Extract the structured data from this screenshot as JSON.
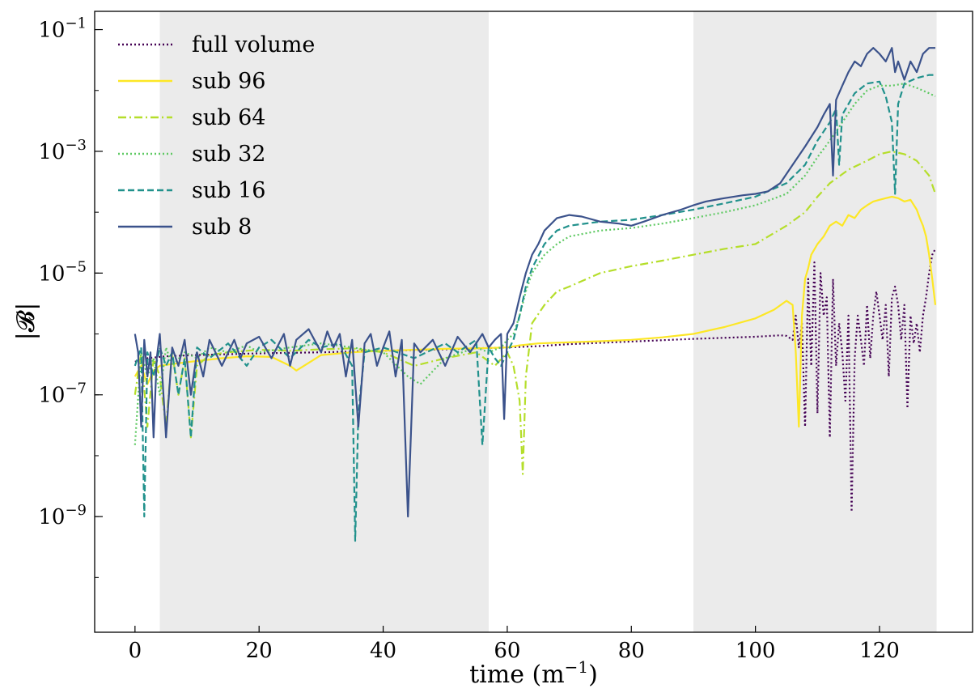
{
  "chart_data": {
    "type": "line",
    "xlabel": "time (m",
    "xlabel_sup": "−1",
    "xlabel_tail": ")",
    "ylabel": "|𝓑|",
    "xlim": [
      -6.5,
      135
    ],
    "ylim_log10": [
      -10.9,
      -0.7
    ],
    "yscale": "log",
    "x_ticks": [
      0,
      20,
      40,
      60,
      80,
      100,
      120
    ],
    "y_ticks": [
      {
        "exp": -1,
        "base": "10",
        "sup": "−1"
      },
      {
        "exp": -3,
        "base": "10",
        "sup": "−3"
      },
      {
        "exp": -5,
        "base": "10",
        "sup": "−5"
      },
      {
        "exp": -7,
        "base": "10",
        "sup": "−7"
      },
      {
        "exp": -9,
        "base": "10",
        "sup": "−9"
      }
    ],
    "shaded_regions": [
      [
        4,
        57
      ],
      [
        90,
        129.2
      ]
    ],
    "shade_color": "#ebebeb",
    "legend_position": "upper-left",
    "series": [
      {
        "name": "full volume",
        "color": "#440154",
        "dash": "dotted",
        "x": [
          0,
          2,
          5,
          10,
          20,
          30,
          40,
          50,
          55,
          60,
          65,
          70,
          80,
          90,
          100,
          104,
          105,
          106,
          106.5,
          107,
          107.5,
          108,
          108.5,
          109,
          109.5,
          110,
          110.5,
          111,
          111.5,
          112,
          112.5,
          113,
          113.5,
          114,
          114.5,
          115,
          115.5,
          116,
          116.5,
          117,
          117.5,
          118,
          118.5,
          119,
          119.5,
          120,
          120.5,
          121,
          121.5,
          122,
          122.5,
          123,
          123.5,
          124,
          124.5,
          125,
          125.5,
          126,
          126.5,
          127,
          127.5,
          128,
          128.5,
          129
        ],
        "y": [
          3.5e-07,
          4e-07,
          4.3e-07,
          4.5e-07,
          4.8e-07,
          5e-07,
          5.3e-07,
          5.6e-07,
          5.8e-07,
          6e-07,
          6.3e-07,
          6.8e-07,
          7.5e-07,
          8.3e-07,
          9e-07,
          9.5e-07,
          9.3e-07,
          8e-07,
          2e-06,
          6e-07,
          1.5e-06,
          3e-08,
          8e-06,
          3e-07,
          1.5e-05,
          5e-08,
          1e-05,
          2e-06,
          4e-06,
          2e-08,
          8e-06,
          3e-07,
          1.5e-06,
          5e-07,
          8e-08,
          2e-06,
          1.2e-09,
          4e-07,
          2e-06,
          8e-07,
          3e-07,
          3e-06,
          4e-07,
          2e-06,
          5e-06,
          2e-06,
          8e-07,
          3e-06,
          2e-07,
          4e-06,
          6e-06,
          3e-06,
          8e-07,
          3e-06,
          6e-08,
          2e-06,
          7e-07,
          1.5e-06,
          5e-07,
          2e-06,
          4e-06,
          1e-05,
          2e-05,
          2.5e-05
        ]
      },
      {
        "name": "sub 96",
        "color": "#fde725",
        "dash": "solid",
        "x": [
          0,
          1,
          2,
          3,
          4,
          6,
          8,
          10,
          14,
          18,
          22,
          25,
          26,
          30,
          35,
          40,
          45,
          50,
          55,
          60,
          62,
          65,
          70,
          75,
          80,
          85,
          90,
          95,
          100,
          103,
          105,
          106,
          106.5,
          107,
          107.5,
          108,
          108.5,
          109,
          110,
          111,
          112,
          113,
          114,
          115,
          116,
          117,
          118,
          119,
          120,
          121,
          122,
          123,
          124,
          125,
          126,
          126.5,
          127,
          127.5,
          128,
          128.5,
          129
        ],
        "y": [
          2e-07,
          3e-07,
          1.5e-07,
          2.5e-07,
          3e-07,
          3.2e-07,
          3.4e-07,
          3.6e-07,
          4e-07,
          4.3e-07,
          4.2e-07,
          3e-07,
          2.5e-07,
          4.5e-07,
          5e-07,
          5.3e-07,
          5.5e-07,
          5.7e-07,
          5.8e-07,
          6e-07,
          6.5e-07,
          7e-07,
          7.3e-07,
          7.6e-07,
          8e-07,
          8.8e-07,
          1e-06,
          1.3e-06,
          1.8e-06,
          2.5e-06,
          3.5e-06,
          3e-06,
          5e-07,
          3e-08,
          2e-06,
          8e-06,
          1.2e-05,
          2e-05,
          3e-05,
          4e-05,
          6e-05,
          7e-05,
          6e-05,
          9e-05,
          8e-05,
          0.00011,
          0.00013,
          0.00015,
          0.00016,
          0.00017,
          0.00018,
          0.00017,
          0.00015,
          0.00016,
          0.00011,
          8e-05,
          6e-05,
          4e-05,
          2e-05,
          8e-06,
          3e-06
        ]
      },
      {
        "name": "sub 64",
        "color": "#b5de2b",
        "dash": "dashdot",
        "x": [
          0,
          1,
          2,
          3,
          4,
          5,
          6,
          7,
          8,
          9,
          10,
          12,
          15,
          20,
          25,
          30,
          35,
          40,
          45,
          50,
          55,
          58,
          60,
          61,
          62,
          62.5,
          63,
          64,
          66,
          68,
          70,
          75,
          80,
          85,
          90,
          95,
          100,
          105,
          108,
          110,
          112,
          115,
          118,
          120,
          122,
          124,
          126,
          128,
          129
        ],
        "y": [
          1e-07,
          5e-07,
          3e-08,
          4e-07,
          2e-07,
          3e-08,
          5e-07,
          1e-07,
          4e-07,
          2e-08,
          3e-07,
          4.5e-07,
          5e-07,
          5.5e-07,
          5.3e-07,
          5.6e-07,
          5.8e-07,
          5e-07,
          3e-07,
          4e-07,
          5e-07,
          3e-07,
          5e-07,
          3e-07,
          8e-08,
          5e-09,
          2e-07,
          1.5e-06,
          3e-06,
          5e-06,
          6e-06,
          1e-05,
          1.3e-05,
          1.6e-05,
          2e-05,
          2.5e-05,
          3e-05,
          6e-05,
          0.0001,
          0.00018,
          0.0003,
          0.0005,
          0.0007,
          0.0009,
          0.001,
          0.0009,
          0.0007,
          0.0004,
          0.0002
        ]
      },
      {
        "name": "sub 32",
        "color": "#5ec962",
        "dash": "dotted",
        "x": [
          0,
          1,
          2,
          3,
          4,
          5,
          6,
          8,
          10,
          12,
          15,
          18,
          20,
          25,
          30,
          35,
          40,
          44,
          46,
          50,
          55,
          57,
          59,
          60,
          61,
          62,
          63,
          64,
          66,
          68,
          70,
          75,
          80,
          85,
          90,
          95,
          100,
          105,
          108,
          110,
          112,
          114,
          116,
          118,
          120,
          122,
          124,
          126,
          128,
          129
        ],
        "y": [
          1.5e-08,
          5e-07,
          2e-07,
          4e-07,
          1e-07,
          6e-07,
          3e-07,
          5e-07,
          4e-07,
          6e-07,
          5e-07,
          6.5e-07,
          5e-07,
          6e-07,
          7e-07,
          6e-07,
          5e-07,
          2e-07,
          1.5e-07,
          4e-07,
          6e-07,
          5e-07,
          6e-07,
          8e-07,
          1e-06,
          2e-06,
          5e-06,
          1e-05,
          2e-05,
          3e-05,
          4e-05,
          5e-05,
          5.5e-05,
          6.5e-05,
          8e-05,
          0.0001,
          0.00013,
          0.0002,
          0.0004,
          0.0008,
          0.0015,
          0.003,
          0.006,
          0.01,
          0.012,
          0.012,
          0.013,
          0.011,
          0.009,
          0.008
        ]
      },
      {
        "name": "sub 16",
        "color": "#21918c",
        "dash": "dashed",
        "x": [
          0,
          1,
          1.5,
          2,
          3,
          4,
          5,
          6,
          7,
          8,
          9,
          10,
          12,
          15,
          18,
          20,
          22,
          25,
          28,
          30,
          33,
          35,
          35.5,
          36,
          37,
          40,
          45,
          50,
          52,
          55,
          56,
          57,
          58,
          59,
          60,
          61,
          62,
          63,
          64,
          66,
          68,
          70,
          75,
          80,
          85,
          90,
          95,
          100,
          105,
          108,
          110,
          112,
          113,
          113.5,
          114,
          116,
          118,
          120,
          121,
          122,
          122.5,
          123,
          124,
          126,
          128,
          129
        ],
        "y": [
          3e-07,
          6e-07,
          1e-09,
          5e-07,
          2e-07,
          6e-07,
          3e-07,
          5e-07,
          1e-07,
          4e-07,
          2e-08,
          6e-07,
          4e-07,
          7e-07,
          3e-07,
          6e-07,
          8e-07,
          4e-07,
          8e-07,
          6e-07,
          7e-07,
          3e-07,
          4e-10,
          5e-08,
          5e-07,
          6e-07,
          4e-07,
          7e-07,
          5e-07,
          8e-07,
          1.5e-08,
          6e-07,
          4e-07,
          3e-07,
          5e-07,
          8e-07,
          2e-06,
          6e-06,
          1.2e-05,
          3e-05,
          5e-05,
          6e-05,
          7e-05,
          7.5e-05,
          9e-05,
          0.00011,
          0.00014,
          0.00018,
          0.0003,
          0.0006,
          0.0015,
          0.003,
          0.005,
          0.0006,
          0.004,
          0.009,
          0.013,
          0.014,
          0.008,
          0.003,
          0.0002,
          0.006,
          0.013,
          0.016,
          0.018,
          0.018
        ]
      },
      {
        "name": "sub 8",
        "color": "#3b528b",
        "dash": "solid",
        "x": [
          0,
          0.5,
          1,
          1.5,
          2,
          2.5,
          3,
          3.5,
          4,
          5,
          6,
          7,
          8,
          9,
          10,
          11,
          12,
          14,
          16,
          17,
          18,
          20,
          22,
          24,
          25,
          26,
          28,
          30,
          31,
          32,
          33,
          34,
          35,
          36,
          37,
          38,
          39,
          40,
          41,
          42,
          43,
          44,
          45,
          46,
          48,
          50,
          52,
          54,
          56,
          57,
          58,
          59,
          59.5,
          60,
          61,
          62,
          63,
          64,
          65,
          66,
          68,
          70,
          72,
          75,
          78,
          80,
          82,
          85,
          88,
          90,
          92,
          95,
          98,
          100,
          102,
          104,
          106,
          108,
          110,
          111,
          112,
          112.5,
          113,
          114,
          115,
          116,
          117,
          118,
          119,
          120,
          121,
          122,
          122.5,
          123,
          124,
          125,
          126,
          127,
          128,
          129
        ],
        "y": [
          1e-06,
          5e-07,
          3e-08,
          8e-07,
          2e-07,
          5e-07,
          2e-08,
          4e-07,
          1e-06,
          2e-08,
          6e-07,
          3e-07,
          8e-07,
          1e-07,
          5e-07,
          2e-07,
          8e-07,
          3e-07,
          8e-07,
          4e-07,
          7e-07,
          9e-07,
          4e-07,
          1e-06,
          3e-07,
          8e-07,
          1.2e-06,
          5e-07,
          1.1e-06,
          6e-07,
          1e-06,
          2e-07,
          8e-07,
          3e-08,
          7e-07,
          1e-06,
          3e-07,
          6e-07,
          1.1e-06,
          2e-07,
          8e-07,
          1e-09,
          7e-07,
          5e-07,
          8e-07,
          3e-07,
          9e-07,
          5e-07,
          1e-06,
          6e-07,
          8e-07,
          1e-06,
          4e-08,
          1e-06,
          1.5e-06,
          4e-06,
          1e-05,
          2e-05,
          3e-05,
          5e-05,
          8e-05,
          9e-05,
          8.5e-05,
          7e-05,
          6.5e-05,
          6e-05,
          7e-05,
          9e-05,
          0.00011,
          0.00013,
          0.00015,
          0.00017,
          0.00019,
          0.0002,
          0.00022,
          0.0003,
          0.0006,
          0.0012,
          0.0025,
          0.004,
          0.006,
          0.0004,
          0.007,
          0.012,
          0.02,
          0.03,
          0.025,
          0.04,
          0.05,
          0.04,
          0.03,
          0.05,
          0.02,
          0.03,
          0.015,
          0.03,
          0.02,
          0.04,
          0.05,
          0.05
        ]
      }
    ]
  }
}
